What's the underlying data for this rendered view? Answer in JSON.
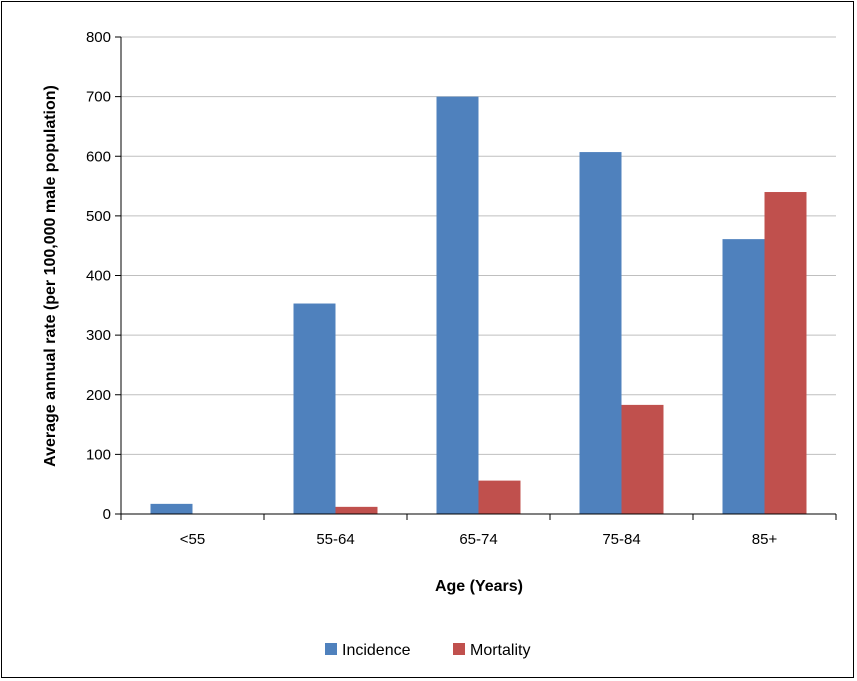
{
  "chart_data": {
    "type": "bar",
    "title": "",
    "xlabel": "Age (Years)",
    "ylabel": "Average annual rate (per 100,000 male population)",
    "categories": [
      "<55",
      "55-64",
      "65-74",
      "75-84",
      "85+"
    ],
    "series": [
      {
        "name": "Incidence",
        "color": "#4f81bd",
        "values": [
          17,
          353,
          700,
          607,
          461
        ]
      },
      {
        "name": "Mortality",
        "color": "#c0504d",
        "values": [
          0,
          12,
          56,
          183,
          540
        ]
      }
    ],
    "ylim": [
      0,
      800
    ],
    "yticks": [
      0,
      100,
      200,
      300,
      400,
      500,
      600,
      700,
      800
    ],
    "grid": true,
    "legend_position": "bottom"
  }
}
